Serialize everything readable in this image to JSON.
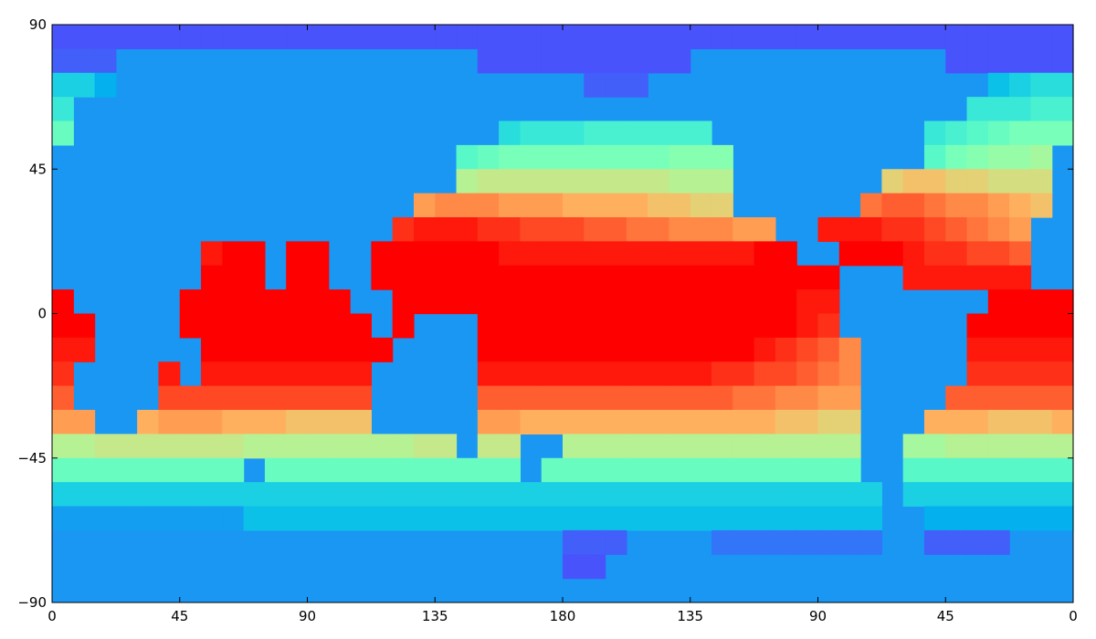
{
  "chart_data": {
    "type": "heatmap",
    "colormap": "rainbow",
    "vmin": -5,
    "vmax": 28,
    "mask_color": "#1a96f3",
    "xlim": [
      0,
      360
    ],
    "ylim": [
      -90,
      90
    ],
    "xticks": [
      0,
      45,
      90,
      135,
      180,
      {
        "value": 225,
        "label": "135"
      },
      {
        "value": 270,
        "label": "90"
      },
      {
        "value": 315,
        "label": "45"
      },
      {
        "value": 360,
        "label": "0"
      }
    ],
    "yticks": [
      {
        "value": -90,
        "label": "−90"
      },
      {
        "value": -45,
        "label": "−45"
      },
      0,
      45,
      90
    ],
    "values": [
      [
        -1.5,
        -1.5,
        -1.5,
        -1.5,
        -1.5,
        -1.5,
        -1.5,
        -1.5,
        -1.5,
        -1.5,
        -1.5,
        -1.5,
        -1.5,
        -1.5,
        -1.5,
        -1.5,
        -1.5,
        -1.5,
        -1.5,
        -1.5,
        -1.5,
        -1.5,
        -1.5,
        -1.5,
        -1.5,
        -1.5,
        -1.5,
        -1.5,
        -1.5,
        -1.5,
        -1.5,
        -1.5,
        -1.5,
        -1.5,
        -1.5,
        -1.5,
        -1.5,
        -1.5,
        -1.5,
        -1.5,
        -1.5,
        -1.5,
        -1.5,
        -1.5,
        -1.5,
        -1.5,
        -1.5,
        -1.5
      ],
      [
        -1,
        -1,
        -1,
        null,
        null,
        null,
        null,
        null,
        null,
        null,
        null,
        null,
        null,
        null,
        null,
        null,
        null,
        null,
        null,
        null,
        -1.5,
        -1.5,
        -1.5,
        -1.5,
        -1.5,
        -1.5,
        -1.5,
        -1.5,
        -1.5,
        -1.5,
        null,
        null,
        null,
        null,
        null,
        null,
        null,
        null,
        null,
        null,
        null,
        null,
        -1.5,
        -1.5,
        -1.5,
        -1.5,
        -1.5,
        -1.5
      ],
      [
        5,
        5,
        3,
        null,
        null,
        null,
        null,
        null,
        null,
        null,
        null,
        null,
        null,
        null,
        null,
        null,
        null,
        null,
        null,
        null,
        null,
        null,
        null,
        null,
        null,
        -1,
        -1,
        -1,
        null,
        null,
        null,
        null,
        null,
        null,
        null,
        null,
        null,
        null,
        null,
        null,
        null,
        null,
        null,
        null,
        4,
        5,
        6,
        6
      ],
      [
        7,
        null,
        null,
        null,
        null,
        null,
        null,
        null,
        null,
        null,
        null,
        null,
        null,
        null,
        null,
        null,
        null,
        null,
        null,
        null,
        null,
        null,
        null,
        null,
        null,
        null,
        null,
        null,
        null,
        null,
        null,
        null,
        null,
        null,
        null,
        null,
        null,
        null,
        null,
        null,
        null,
        null,
        null,
        7,
        7,
        7,
        8,
        8
      ],
      [
        10,
        null,
        null,
        null,
        null,
        null,
        null,
        null,
        null,
        null,
        null,
        null,
        null,
        null,
        null,
        null,
        null,
        null,
        null,
        null,
        null,
        6,
        7,
        7,
        7,
        8,
        8,
        8,
        8,
        8,
        8,
        null,
        null,
        null,
        null,
        null,
        null,
        null,
        null,
        null,
        null,
        7,
        8,
        9,
        10,
        11,
        11,
        11
      ],
      [
        null,
        null,
        null,
        null,
        null,
        null,
        null,
        null,
        null,
        null,
        null,
        null,
        null,
        null,
        null,
        null,
        null,
        null,
        null,
        9,
        10,
        11,
        11,
        11,
        11,
        11,
        11,
        11,
        11,
        12,
        12,
        12,
        null,
        null,
        null,
        null,
        null,
        null,
        null,
        null,
        null,
        9,
        11,
        12,
        13,
        13,
        14,
        null
      ],
      [
        null,
        null,
        null,
        null,
        null,
        null,
        null,
        null,
        null,
        null,
        null,
        null,
        null,
        null,
        null,
        null,
        null,
        null,
        null,
        15,
        16,
        16,
        16,
        16,
        16,
        16,
        16,
        16,
        16,
        15,
        15,
        15,
        null,
        null,
        null,
        null,
        null,
        null,
        null,
        18,
        19,
        19,
        18,
        18,
        17,
        17,
        17,
        null
      ],
      [
        null,
        null,
        null,
        null,
        null,
        null,
        null,
        null,
        null,
        null,
        null,
        null,
        null,
        null,
        null,
        null,
        null,
        21,
        22,
        22,
        22,
        21,
        21,
        21,
        20,
        20,
        20,
        20,
        19,
        19,
        18,
        18,
        null,
        null,
        null,
        null,
        null,
        null,
        23,
        24,
        24,
        23,
        22,
        22,
        21,
        20,
        19,
        null
      ],
      [
        null,
        null,
        null,
        null,
        null,
        null,
        null,
        null,
        null,
        null,
        null,
        null,
        null,
        null,
        null,
        null,
        26,
        27,
        27,
        27,
        26,
        26,
        25,
        25,
        25,
        24,
        24,
        23,
        23,
        22,
        22,
        22,
        21,
        21,
        null,
        null,
        27,
        27,
        27,
        26,
        26,
        25,
        24,
        23,
        22,
        21,
        null,
        null
      ],
      [
        null,
        null,
        null,
        null,
        null,
        null,
        null,
        27,
        28,
        28,
        null,
        28,
        28,
        null,
        null,
        28,
        28,
        28,
        28,
        28,
        28,
        27,
        27,
        27,
        27,
        27,
        27,
        27,
        27,
        27,
        27,
        27,
        27,
        28,
        28,
        null,
        null,
        28,
        28,
        28,
        27,
        26,
        26,
        25,
        25,
        24,
        null,
        null
      ],
      [
        null,
        null,
        null,
        null,
        null,
        null,
        null,
        28,
        28,
        28,
        null,
        29,
        29,
        null,
        null,
        29,
        29,
        29,
        29,
        29,
        29,
        29,
        29,
        29,
        29,
        29,
        29,
        29,
        29,
        29,
        29,
        29,
        29,
        29,
        29,
        29,
        29,
        null,
        null,
        null,
        27,
        27,
        27,
        27,
        27,
        27,
        null,
        null
      ],
      [
        28,
        null,
        null,
        null,
        null,
        null,
        29,
        29,
        29,
        29,
        29,
        29,
        29,
        29,
        null,
        null,
        29,
        29,
        29,
        29,
        29,
        29,
        29,
        29,
        29,
        29,
        29,
        29,
        29,
        29,
        29,
        29,
        29,
        29,
        29,
        27,
        27,
        null,
        null,
        null,
        null,
        null,
        null,
        null,
        28,
        28,
        28,
        28
      ],
      [
        28,
        28,
        null,
        null,
        null,
        null,
        29,
        29,
        29,
        29,
        29,
        29,
        29,
        29,
        29,
        null,
        29,
        null,
        null,
        null,
        29,
        29,
        29,
        29,
        29,
        29,
        29,
        29,
        29,
        29,
        29,
        29,
        29,
        29,
        28,
        27,
        26,
        null,
        null,
        null,
        null,
        null,
        null,
        28,
        28,
        28,
        28,
        28
      ],
      [
        27,
        27,
        null,
        null,
        null,
        null,
        null,
        28,
        28,
        28,
        28,
        28,
        28,
        28,
        28,
        28,
        null,
        null,
        null,
        null,
        28,
        28,
        28,
        28,
        28,
        28,
        28,
        28,
        28,
        28,
        28,
        28,
        28,
        27,
        26,
        25,
        24,
        22,
        null,
        null,
        null,
        null,
        null,
        27,
        27,
        27,
        27,
        27
      ],
      [
        26,
        null,
        null,
        null,
        null,
        27,
        null,
        27,
        27,
        27,
        27,
        27,
        27,
        27,
        27,
        null,
        null,
        null,
        null,
        null,
        27,
        27,
        27,
        27,
        27,
        27,
        27,
        27,
        27,
        27,
        27,
        26,
        26,
        25,
        25,
        24,
        23,
        22,
        null,
        null,
        null,
        null,
        null,
        26,
        26,
        26,
        26,
        26
      ],
      [
        24,
        null,
        null,
        null,
        null,
        25,
        25,
        25,
        25,
        25,
        25,
        25,
        25,
        25,
        25,
        null,
        null,
        null,
        null,
        null,
        24,
        24,
        24,
        24,
        24,
        24,
        24,
        24,
        24,
        24,
        24,
        24,
        23,
        23,
        22,
        22,
        21,
        21,
        null,
        null,
        null,
        null,
        24,
        24,
        24,
        24,
        24,
        24
      ],
      [
        21,
        21,
        null,
        null,
        20,
        21,
        21,
        21,
        20,
        20,
        20,
        19,
        19,
        19,
        19,
        null,
        null,
        null,
        null,
        null,
        21,
        21,
        20,
        20,
        20,
        20,
        20,
        20,
        20,
        20,
        20,
        20,
        20,
        20,
        19,
        19,
        18,
        18,
        null,
        null,
        null,
        20,
        20,
        20,
        19,
        19,
        19,
        20
      ],
      [
        15,
        15,
        16,
        16,
        16,
        16,
        16,
        16,
        16,
        15,
        15,
        15,
        15,
        15,
        15,
        15,
        15,
        16,
        16,
        null,
        16,
        16,
        null,
        null,
        15,
        15,
        15,
        15,
        15,
        15,
        15,
        15,
        15,
        15,
        15,
        15,
        15,
        15,
        null,
        null,
        14,
        14,
        15,
        15,
        15,
        15,
        15,
        15
      ],
      [
        10,
        10,
        10,
        10,
        10,
        10,
        10,
        10,
        10,
        null,
        10,
        10,
        10,
        10,
        10,
        10,
        10,
        10,
        10,
        10,
        10,
        10,
        null,
        10,
        10,
        10,
        10,
        10,
        10,
        10,
        10,
        10,
        10,
        10,
        10,
        10,
        10,
        10,
        null,
        null,
        9,
        9,
        9,
        9,
        9,
        9,
        9,
        9
      ],
      [
        5,
        5,
        5,
        5,
        5,
        5,
        5,
        5,
        5,
        5,
        5,
        5,
        5,
        5,
        5,
        5,
        5,
        5,
        5,
        5,
        5,
        5,
        5,
        5,
        5,
        5,
        5,
        5,
        5,
        5,
        5,
        5,
        5,
        5,
        5,
        5,
        5,
        5,
        5,
        null,
        5,
        5,
        5,
        5,
        5,
        5,
        5,
        5
      ],
      [
        2,
        2,
        2,
        2,
        2,
        2,
        2,
        2,
        2,
        4,
        4,
        4,
        4,
        4,
        4,
        4,
        4,
        4,
        4,
        4,
        4,
        4,
        4,
        4,
        4,
        4,
        4,
        4,
        4,
        4,
        4,
        4,
        4,
        4,
        4,
        4,
        4,
        4,
        4,
        null,
        null,
        3,
        3,
        3,
        3,
        3,
        3,
        3
      ],
      [
        null,
        null,
        null,
        null,
        null,
        null,
        null,
        null,
        null,
        null,
        null,
        null,
        null,
        null,
        null,
        null,
        null,
        null,
        null,
        null,
        null,
        null,
        null,
        null,
        -1,
        -1,
        -1,
        null,
        null,
        null,
        null,
        0,
        0,
        0,
        0,
        0,
        0,
        0,
        0,
        null,
        null,
        -1,
        -1,
        -1,
        -1,
        null,
        null,
        null
      ],
      [
        null,
        null,
        null,
        null,
        null,
        null,
        null,
        null,
        null,
        null,
        null,
        null,
        null,
        null,
        null,
        null,
        null,
        null,
        null,
        null,
        null,
        null,
        null,
        null,
        -1.5,
        -1.5,
        null,
        null,
        null,
        null,
        null,
        null,
        null,
        null,
        null,
        null,
        null,
        null,
        null,
        null,
        null,
        null,
        null,
        null,
        null,
        null,
        null,
        null
      ],
      [
        null,
        null,
        null,
        null,
        null,
        null,
        null,
        null,
        null,
        null,
        null,
        null,
        null,
        null,
        null,
        null,
        null,
        null,
        null,
        null,
        null,
        null,
        null,
        null,
        null,
        null,
        null,
        null,
        null,
        null,
        null,
        null,
        null,
        null,
        null,
        null,
        null,
        null,
        null,
        null,
        null,
        null,
        null,
        null,
        null,
        null,
        null,
        null
      ]
    ]
  }
}
